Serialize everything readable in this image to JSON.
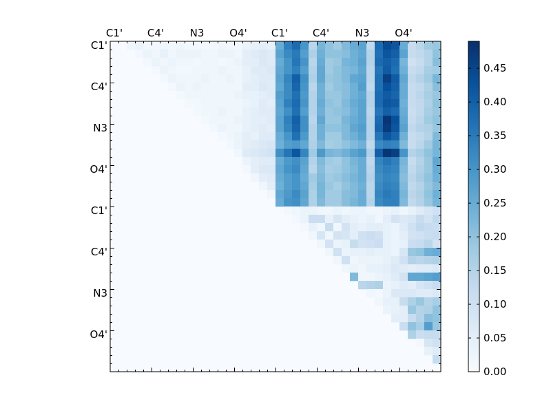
{
  "chart_data": {
    "type": "heatmap",
    "title": "",
    "xlabel": "",
    "ylabel": "",
    "x_tick_labels": [
      "C1'",
      "C4'",
      "N3",
      "O4'",
      "C1'",
      "C4'",
      "N3",
      "O4'"
    ],
    "y_tick_labels": [
      "C1'",
      "C4'",
      "N3",
      "O4'",
      "C1'",
      "C4'",
      "N3",
      "O4'"
    ],
    "grid": false,
    "colormap": "Blues",
    "color_low": "#f7fbff",
    "color_high": "#08306b",
    "vmin": 0.0,
    "vmax": 0.49,
    "colorbar": {
      "ticks": [
        "0.00",
        "0.05",
        "0.10",
        "0.15",
        "0.20",
        "0.25",
        "0.30",
        "0.35",
        "0.40",
        "0.45"
      ],
      "tick_values": [
        0.0,
        0.05,
        0.1,
        0.15,
        0.2,
        0.25,
        0.3,
        0.35,
        0.4,
        0.45
      ],
      "placement": "right"
    },
    "matrix_size": 40,
    "upper_left_block_rows": [
      [
        0.0,
        0.0,
        0.02,
        0.03,
        0.01,
        0.01,
        0.02,
        0.01,
        0.02,
        0.01,
        0.01,
        0.01,
        0.01,
        0.02,
        0.01,
        0.01,
        0.03,
        0.04,
        0.05,
        0.04
      ],
      [
        0.0,
        0.0,
        0.0,
        0.01,
        0.03,
        0.02,
        0.04,
        0.02,
        0.03,
        0.03,
        0.03,
        0.02,
        0.02,
        0.03,
        0.03,
        0.02,
        0.05,
        0.06,
        0.07,
        0.06
      ],
      [
        0.0,
        0.0,
        0.0,
        0.0,
        0.01,
        0.03,
        0.02,
        0.03,
        0.02,
        0.02,
        0.01,
        0.02,
        0.02,
        0.01,
        0.02,
        0.03,
        0.05,
        0.05,
        0.07,
        0.06
      ],
      [
        0.0,
        0.0,
        0.0,
        0.0,
        0.0,
        0.01,
        0.03,
        0.02,
        0.01,
        0.01,
        0.02,
        0.02,
        0.02,
        0.03,
        0.02,
        0.02,
        0.04,
        0.06,
        0.06,
        0.07
      ],
      [
        0.0,
        0.0,
        0.0,
        0.0,
        0.0,
        0.0,
        0.01,
        0.03,
        0.02,
        0.02,
        0.02,
        0.03,
        0.02,
        0.02,
        0.03,
        0.02,
        0.04,
        0.05,
        0.06,
        0.06
      ],
      [
        0.0,
        0.0,
        0.0,
        0.0,
        0.0,
        0.0,
        0.0,
        0.01,
        0.03,
        0.02,
        0.03,
        0.02,
        0.02,
        0.02,
        0.02,
        0.02,
        0.05,
        0.05,
        0.07,
        0.06
      ],
      [
        0.0,
        0.0,
        0.0,
        0.0,
        0.0,
        0.0,
        0.0,
        0.0,
        0.01,
        0.02,
        0.02,
        0.02,
        0.02,
        0.02,
        0.02,
        0.03,
        0.04,
        0.04,
        0.05,
        0.06
      ],
      [
        0.0,
        0.0,
        0.0,
        0.0,
        0.0,
        0.0,
        0.0,
        0.0,
        0.0,
        0.01,
        0.01,
        0.02,
        0.02,
        0.02,
        0.02,
        0.02,
        0.03,
        0.04,
        0.06,
        0.05
      ],
      [
        0.0,
        0.0,
        0.0,
        0.0,
        0.0,
        0.0,
        0.0,
        0.0,
        0.0,
        0.0,
        0.01,
        0.02,
        0.02,
        0.03,
        0.02,
        0.02,
        0.04,
        0.05,
        0.06,
        0.06
      ],
      [
        0.0,
        0.0,
        0.0,
        0.0,
        0.0,
        0.0,
        0.0,
        0.0,
        0.0,
        0.0,
        0.0,
        0.01,
        0.02,
        0.02,
        0.02,
        0.03,
        0.04,
        0.05,
        0.05,
        0.06
      ],
      [
        0.0,
        0.0,
        0.0,
        0.0,
        0.0,
        0.0,
        0.0,
        0.0,
        0.0,
        0.0,
        0.0,
        0.0,
        0.01,
        0.03,
        0.02,
        0.02,
        0.04,
        0.05,
        0.06,
        0.05
      ],
      [
        0.0,
        0.0,
        0.0,
        0.0,
        0.0,
        0.0,
        0.0,
        0.0,
        0.0,
        0.0,
        0.0,
        0.0,
        0.0,
        0.01,
        0.02,
        0.03,
        0.05,
        0.04,
        0.06,
        0.06
      ],
      [
        0.0,
        0.0,
        0.0,
        0.0,
        0.0,
        0.0,
        0.0,
        0.0,
        0.0,
        0.0,
        0.0,
        0.0,
        0.0,
        0.0,
        0.01,
        0.03,
        0.05,
        0.06,
        0.07,
        0.08
      ],
      [
        0.0,
        0.0,
        0.0,
        0.0,
        0.0,
        0.0,
        0.0,
        0.0,
        0.0,
        0.0,
        0.0,
        0.0,
        0.0,
        0.0,
        0.0,
        0.02,
        0.06,
        0.07,
        0.08,
        0.09
      ],
      [
        0.0,
        0.0,
        0.0,
        0.0,
        0.0,
        0.0,
        0.0,
        0.0,
        0.0,
        0.0,
        0.0,
        0.0,
        0.0,
        0.0,
        0.0,
        0.0,
        0.03,
        0.05,
        0.06,
        0.06
      ],
      [
        0.0,
        0.0,
        0.0,
        0.0,
        0.0,
        0.0,
        0.0,
        0.0,
        0.0,
        0.0,
        0.0,
        0.0,
        0.0,
        0.0,
        0.0,
        0.0,
        0.01,
        0.05,
        0.07,
        0.07
      ],
      [
        0.0,
        0.0,
        0.0,
        0.0,
        0.0,
        0.0,
        0.0,
        0.0,
        0.0,
        0.0,
        0.0,
        0.0,
        0.0,
        0.0,
        0.0,
        0.0,
        0.0,
        0.02,
        0.05,
        0.06
      ],
      [
        0.0,
        0.0,
        0.0,
        0.0,
        0.0,
        0.0,
        0.0,
        0.0,
        0.0,
        0.0,
        0.0,
        0.0,
        0.0,
        0.0,
        0.0,
        0.0,
        0.0,
        0.0,
        0.02,
        0.05
      ],
      [
        0.0,
        0.0,
        0.0,
        0.0,
        0.0,
        0.0,
        0.0,
        0.0,
        0.0,
        0.0,
        0.0,
        0.0,
        0.0,
        0.0,
        0.0,
        0.0,
        0.0,
        0.0,
        0.0,
        0.02
      ],
      [
        0.0,
        0.0,
        0.0,
        0.0,
        0.0,
        0.0,
        0.0,
        0.0,
        0.0,
        0.0,
        0.0,
        0.0,
        0.0,
        0.0,
        0.0,
        0.0,
        0.0,
        0.0,
        0.0,
        0.0
      ]
    ],
    "upper_right_block_rows": [
      [
        0.25,
        0.34,
        0.38,
        0.3,
        0.14,
        0.23,
        0.2,
        0.18,
        0.22,
        0.25,
        0.27,
        0.13,
        0.38,
        0.44,
        0.42,
        0.25,
        0.12,
        0.14,
        0.18,
        0.19
      ],
      [
        0.27,
        0.32,
        0.35,
        0.28,
        0.16,
        0.24,
        0.2,
        0.2,
        0.21,
        0.24,
        0.26,
        0.15,
        0.37,
        0.42,
        0.4,
        0.27,
        0.12,
        0.13,
        0.15,
        0.2
      ],
      [
        0.25,
        0.3,
        0.36,
        0.3,
        0.14,
        0.25,
        0.18,
        0.19,
        0.23,
        0.24,
        0.27,
        0.15,
        0.38,
        0.4,
        0.38,
        0.23,
        0.1,
        0.12,
        0.15,
        0.21
      ],
      [
        0.26,
        0.3,
        0.34,
        0.28,
        0.15,
        0.26,
        0.18,
        0.2,
        0.22,
        0.23,
        0.26,
        0.14,
        0.36,
        0.41,
        0.37,
        0.24,
        0.12,
        0.13,
        0.17,
        0.18
      ],
      [
        0.27,
        0.33,
        0.4,
        0.31,
        0.16,
        0.26,
        0.19,
        0.2,
        0.22,
        0.26,
        0.27,
        0.14,
        0.37,
        0.46,
        0.41,
        0.26,
        0.13,
        0.15,
        0.18,
        0.23
      ],
      [
        0.26,
        0.32,
        0.39,
        0.3,
        0.14,
        0.24,
        0.18,
        0.2,
        0.21,
        0.24,
        0.28,
        0.13,
        0.37,
        0.43,
        0.4,
        0.25,
        0.12,
        0.13,
        0.16,
        0.21
      ],
      [
        0.28,
        0.32,
        0.37,
        0.29,
        0.15,
        0.24,
        0.19,
        0.19,
        0.21,
        0.24,
        0.26,
        0.15,
        0.38,
        0.41,
        0.39,
        0.25,
        0.12,
        0.14,
        0.17,
        0.19
      ],
      [
        0.27,
        0.34,
        0.38,
        0.3,
        0.15,
        0.25,
        0.2,
        0.19,
        0.22,
        0.25,
        0.27,
        0.15,
        0.38,
        0.42,
        0.41,
        0.24,
        0.12,
        0.13,
        0.16,
        0.2
      ],
      [
        0.26,
        0.31,
        0.37,
        0.28,
        0.15,
        0.24,
        0.19,
        0.2,
        0.21,
        0.24,
        0.27,
        0.14,
        0.36,
        0.4,
        0.38,
        0.25,
        0.11,
        0.13,
        0.17,
        0.19
      ],
      [
        0.27,
        0.34,
        0.4,
        0.31,
        0.14,
        0.26,
        0.19,
        0.19,
        0.23,
        0.25,
        0.27,
        0.15,
        0.38,
        0.48,
        0.43,
        0.26,
        0.12,
        0.14,
        0.18,
        0.2
      ],
      [
        0.27,
        0.33,
        0.39,
        0.31,
        0.15,
        0.24,
        0.2,
        0.2,
        0.22,
        0.26,
        0.28,
        0.15,
        0.39,
        0.47,
        0.42,
        0.27,
        0.13,
        0.15,
        0.16,
        0.19
      ],
      [
        0.25,
        0.3,
        0.37,
        0.29,
        0.15,
        0.24,
        0.18,
        0.18,
        0.22,
        0.24,
        0.27,
        0.15,
        0.36,
        0.42,
        0.39,
        0.24,
        0.12,
        0.13,
        0.15,
        0.22
      ],
      [
        0.24,
        0.28,
        0.29,
        0.26,
        0.16,
        0.22,
        0.17,
        0.18,
        0.2,
        0.22,
        0.24,
        0.13,
        0.32,
        0.34,
        0.33,
        0.22,
        0.12,
        0.14,
        0.18,
        0.23
      ],
      [
        0.31,
        0.36,
        0.42,
        0.33,
        0.18,
        0.29,
        0.23,
        0.22,
        0.24,
        0.27,
        0.29,
        0.16,
        0.4,
        0.48,
        0.46,
        0.3,
        0.15,
        0.17,
        0.2,
        0.23
      ],
      [
        0.25,
        0.29,
        0.31,
        0.27,
        0.15,
        0.22,
        0.18,
        0.17,
        0.2,
        0.23,
        0.25,
        0.13,
        0.33,
        0.36,
        0.34,
        0.23,
        0.12,
        0.15,
        0.19,
        0.26
      ],
      [
        0.26,
        0.3,
        0.32,
        0.26,
        0.14,
        0.21,
        0.17,
        0.18,
        0.2,
        0.22,
        0.25,
        0.14,
        0.32,
        0.34,
        0.33,
        0.22,
        0.13,
        0.16,
        0.19,
        0.25
      ],
      [
        0.25,
        0.28,
        0.3,
        0.25,
        0.18,
        0.22,
        0.18,
        0.19,
        0.21,
        0.23,
        0.25,
        0.15,
        0.31,
        0.33,
        0.32,
        0.21,
        0.14,
        0.17,
        0.2,
        0.24
      ],
      [
        0.24,
        0.28,
        0.3,
        0.26,
        0.17,
        0.23,
        0.19,
        0.17,
        0.2,
        0.22,
        0.24,
        0.14,
        0.32,
        0.34,
        0.33,
        0.22,
        0.13,
        0.15,
        0.19,
        0.22
      ],
      [
        0.26,
        0.29,
        0.32,
        0.27,
        0.16,
        0.23,
        0.18,
        0.18,
        0.21,
        0.22,
        0.25,
        0.14,
        0.33,
        0.35,
        0.34,
        0.23,
        0.14,
        0.16,
        0.2,
        0.24
      ],
      [
        0.25,
        0.3,
        0.31,
        0.26,
        0.16,
        0.22,
        0.18,
        0.18,
        0.21,
        0.23,
        0.25,
        0.15,
        0.32,
        0.34,
        0.34,
        0.22,
        0.13,
        0.15,
        0.19,
        0.23
      ]
    ],
    "lower_right_block_rows": [
      [
        0.0,
        0.01,
        0.02,
        0.03,
        0.03,
        0.02,
        0.02,
        0.03,
        0.02,
        0.03,
        0.03,
        0.02,
        0.02,
        0.03,
        0.04,
        0.02,
        0.04,
        0.06,
        0.08,
        0.1
      ],
      [
        0.0,
        0.0,
        0.01,
        0.03,
        0.11,
        0.11,
        0.04,
        0.08,
        0.05,
        0.04,
        0.03,
        0.04,
        0.02,
        0.05,
        0.09,
        0.07,
        0.08,
        0.12,
        0.09,
        0.13
      ],
      [
        0.0,
        0.0,
        0.0,
        0.01,
        0.04,
        0.02,
        0.12,
        0.02,
        0.09,
        0.05,
        0.04,
        0.05,
        0.05,
        0.04,
        0.03,
        0.06,
        0.1,
        0.13,
        0.12,
        0.11
      ],
      [
        0.0,
        0.0,
        0.0,
        0.0,
        0.02,
        0.08,
        0.02,
        0.09,
        0.08,
        0.05,
        0.1,
        0.11,
        0.1,
        0.04,
        0.03,
        0.05,
        0.09,
        0.1,
        0.11,
        0.12
      ],
      [
        0.0,
        0.0,
        0.0,
        0.0,
        0.0,
        0.02,
        0.09,
        0.03,
        0.04,
        0.12,
        0.09,
        0.1,
        0.11,
        0.04,
        0.03,
        0.04,
        0.11,
        0.12,
        0.14,
        0.09
      ],
      [
        0.0,
        0.0,
        0.0,
        0.0,
        0.0,
        0.0,
        0.02,
        0.1,
        0.03,
        0.04,
        0.04,
        0.05,
        0.04,
        0.04,
        0.03,
        0.08,
        0.19,
        0.2,
        0.24,
        0.25
      ],
      [
        0.0,
        0.0,
        0.0,
        0.0,
        0.0,
        0.0,
        0.0,
        0.02,
        0.1,
        0.02,
        0.03,
        0.03,
        0.03,
        0.04,
        0.06,
        0.1,
        0.15,
        0.14,
        0.15,
        0.16
      ],
      [
        0.0,
        0.0,
        0.0,
        0.0,
        0.0,
        0.0,
        0.0,
        0.0,
        0.02,
        0.03,
        0.02,
        0.04,
        0.04,
        0.05,
        0.07,
        0.06,
        0.05,
        0.06,
        0.06,
        0.07
      ],
      [
        0.0,
        0.0,
        0.0,
        0.0,
        0.0,
        0.0,
        0.0,
        0.0,
        0.0,
        0.22,
        0.02,
        0.02,
        0.03,
        0.04,
        0.06,
        0.09,
        0.26,
        0.26,
        0.27,
        0.28
      ],
      [
        0.0,
        0.0,
        0.0,
        0.0,
        0.0,
        0.0,
        0.0,
        0.0,
        0.0,
        0.0,
        0.14,
        0.15,
        0.16,
        0.03,
        0.04,
        0.06,
        0.05,
        0.08,
        0.1,
        0.12
      ],
      [
        0.0,
        0.0,
        0.0,
        0.0,
        0.0,
        0.0,
        0.0,
        0.0,
        0.0,
        0.0,
        0.0,
        0.02,
        0.01,
        0.03,
        0.07,
        0.07,
        0.07,
        0.06,
        0.06,
        0.07
      ],
      [
        0.0,
        0.0,
        0.0,
        0.0,
        0.0,
        0.0,
        0.0,
        0.0,
        0.0,
        0.0,
        0.0,
        0.0,
        0.02,
        0.04,
        0.04,
        0.12,
        0.16,
        0.19,
        0.15,
        0.17
      ],
      [
        0.0,
        0.0,
        0.0,
        0.0,
        0.0,
        0.0,
        0.0,
        0.0,
        0.0,
        0.0,
        0.0,
        0.0,
        0.0,
        0.03,
        0.04,
        0.05,
        0.19,
        0.15,
        0.16,
        0.2
      ],
      [
        0.0,
        0.0,
        0.0,
        0.0,
        0.0,
        0.0,
        0.0,
        0.0,
        0.0,
        0.0,
        0.0,
        0.0,
        0.0,
        0.0,
        0.05,
        0.05,
        0.12,
        0.15,
        0.21,
        0.2
      ],
      [
        0.0,
        0.0,
        0.0,
        0.0,
        0.0,
        0.0,
        0.0,
        0.0,
        0.0,
        0.0,
        0.0,
        0.0,
        0.0,
        0.0,
        0.0,
        0.11,
        0.2,
        0.17,
        0.28,
        0.19
      ],
      [
        0.0,
        0.0,
        0.0,
        0.0,
        0.0,
        0.0,
        0.0,
        0.0,
        0.0,
        0.0,
        0.0,
        0.0,
        0.0,
        0.0,
        0.0,
        0.0,
        0.16,
        0.11,
        0.12,
        0.12
      ],
      [
        0.0,
        0.0,
        0.0,
        0.0,
        0.0,
        0.0,
        0.0,
        0.0,
        0.0,
        0.0,
        0.0,
        0.0,
        0.0,
        0.0,
        0.0,
        0.0,
        0.0,
        0.01,
        0.08,
        0.1
      ],
      [
        0.0,
        0.0,
        0.0,
        0.0,
        0.0,
        0.0,
        0.0,
        0.0,
        0.0,
        0.0,
        0.0,
        0.0,
        0.0,
        0.0,
        0.0,
        0.0,
        0.0,
        0.0,
        0.04,
        0.06
      ],
      [
        0.0,
        0.0,
        0.0,
        0.0,
        0.0,
        0.0,
        0.0,
        0.0,
        0.0,
        0.0,
        0.0,
        0.0,
        0.0,
        0.0,
        0.0,
        0.0,
        0.0,
        0.0,
        0.0,
        0.12
      ],
      [
        0.0,
        0.0,
        0.0,
        0.0,
        0.0,
        0.0,
        0.0,
        0.0,
        0.0,
        0.0,
        0.0,
        0.0,
        0.0,
        0.0,
        0.0,
        0.0,
        0.0,
        0.0,
        0.0,
        0.0
      ]
    ]
  }
}
